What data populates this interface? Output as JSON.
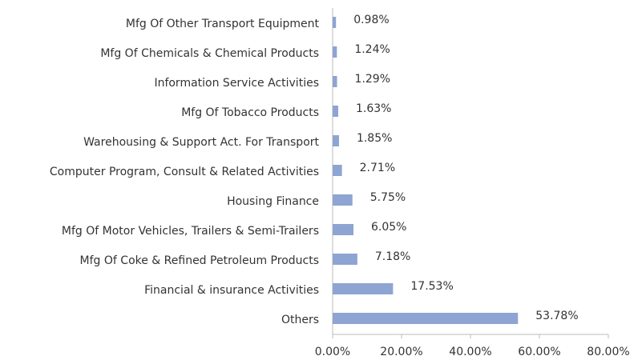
{
  "chart_data": {
    "type": "bar",
    "orientation": "horizontal",
    "categories": [
      "Mfg Of Other Transport Equipment",
      "Mfg Of Chemicals & Chemical Products",
      "Information Service Activities",
      "Mfg Of Tobacco Products",
      "Warehousing & Support Act. For Transport",
      "Computer Program, Consult & Related Activities",
      "Housing Finance",
      "Mfg Of Motor Vehicles, Trailers & Semi-Trailers",
      "Mfg Of Coke & Refined Petroleum Products",
      "Financial & insurance Activities",
      "Others"
    ],
    "values": [
      0.98,
      1.24,
      1.29,
      1.63,
      1.85,
      2.71,
      5.75,
      6.05,
      7.18,
      17.53,
      53.78
    ],
    "value_labels": [
      "0.98%",
      "1.24%",
      "1.29%",
      "1.63%",
      "1.85%",
      "2.71%",
      "5.75%",
      "6.05%",
      "7.18%",
      "17.53%",
      "53.78%"
    ],
    "color": "#8ea4d2",
    "xlim": [
      0,
      80
    ],
    "xticks": [
      {
        "value": 0,
        "label": "0.00%"
      },
      {
        "value": 20,
        "label": "20.00%"
      },
      {
        "value": 40,
        "label": "40.00%"
      },
      {
        "value": 60,
        "label": "60.00%"
      },
      {
        "value": 80,
        "label": "80.00%"
      }
    ],
    "grid": false
  }
}
